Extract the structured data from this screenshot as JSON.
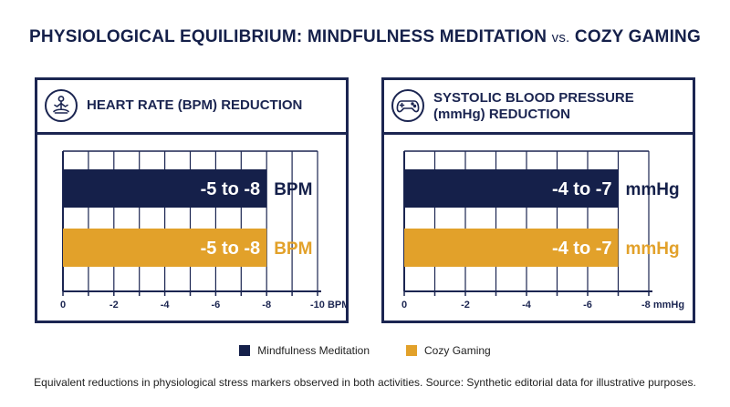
{
  "title": {
    "part1": "PHYSIOLOGICAL EQUILIBRIUM: MINDFULNESS MEDITATION",
    "vs": "vs.",
    "part2": "COZY GAMING"
  },
  "colors": {
    "navy": "#15204a",
    "gold": "#e2a12a",
    "grid": "#1b2551"
  },
  "legend": [
    {
      "name": "Mindfulness Meditation",
      "color": "#15204a"
    },
    {
      "name": "Cozy Gaming",
      "color": "#e2a12a"
    }
  ],
  "footnote": "Equivalent reductions in physiological stress markers observed in both activities. Source: Synthetic editorial data for illustrative purposes.",
  "chart_data": [
    {
      "type": "bar",
      "orientation": "horizontal",
      "icon": "meditation-icon",
      "title_lines": [
        "HEART RATE (BPM) REDUCTION"
      ],
      "unit": "BPM",
      "xlim": [
        0,
        -10
      ],
      "ticks": [
        0,
        -2,
        -4,
        -6,
        -8,
        -10
      ],
      "tick_labels": [
        "0",
        "-2",
        "-4",
        "-6",
        "-8",
        "-10 BPM"
      ],
      "series": [
        {
          "name": "Mindfulness Meditation",
          "range": [
            -5,
            -8
          ],
          "label": "-5 to -8",
          "unit_label": "BPM",
          "color": "#15204a"
        },
        {
          "name": "Cozy Gaming",
          "range": [
            -5,
            -8
          ],
          "label": "-5 to -8",
          "unit_label": "BPM",
          "color": "#e2a12a"
        }
      ]
    },
    {
      "type": "bar",
      "orientation": "horizontal",
      "icon": "gamepad-icon",
      "title_lines": [
        "SYSTOLIC BLOOD PRESSURE",
        "(mmHg) REDUCTION"
      ],
      "unit": "mmHg",
      "xlim": [
        0,
        -8
      ],
      "ticks": [
        0,
        -2,
        -4,
        -6,
        -8
      ],
      "tick_labels": [
        "0",
        "-2",
        "-4",
        "-6",
        "-8 mmHg"
      ],
      "series": [
        {
          "name": "Mindfulness Meditation",
          "range": [
            -4,
            -7
          ],
          "label": "-4 to -7",
          "unit_label": "mmHg",
          "color": "#15204a"
        },
        {
          "name": "Cozy Gaming",
          "range": [
            -4,
            -7
          ],
          "label": "-4 to -7",
          "unit_label": "mmHg",
          "color": "#e2a12a"
        }
      ]
    }
  ]
}
